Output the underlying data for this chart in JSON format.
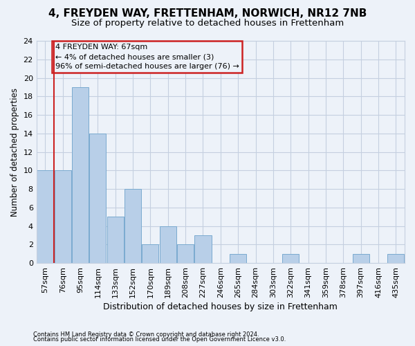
{
  "title1": "4, FREYDEN WAY, FRETTENHAM, NORWICH, NR12 7NB",
  "title2": "Size of property relative to detached houses in Frettenham",
  "xlabel": "Distribution of detached houses by size in Frettenham",
  "ylabel": "Number of detached properties",
  "categories": [
    "57sqm",
    "76sqm",
    "95sqm",
    "114sqm",
    "133sqm",
    "152sqm",
    "170sqm",
    "189sqm",
    "208sqm",
    "227sqm",
    "246sqm",
    "265sqm",
    "284sqm",
    "303sqm",
    "322sqm",
    "341sqm",
    "359sqm",
    "378sqm",
    "397sqm",
    "416sqm",
    "435sqm"
  ],
  "values": [
    10,
    10,
    19,
    14,
    5,
    8,
    2,
    4,
    2,
    3,
    0,
    1,
    0,
    0,
    1,
    0,
    0,
    0,
    1,
    0,
    1
  ],
  "bar_color": "#b8cfe8",
  "bar_edge_color": "#7aaad0",
  "highlight_color": "#cc2222",
  "ylim": [
    0,
    24
  ],
  "yticks": [
    0,
    2,
    4,
    6,
    8,
    10,
    12,
    14,
    16,
    18,
    20,
    22,
    24
  ],
  "annotation_line1": "4 FREYDEN WAY: 67sqm",
  "annotation_line2": "← 4% of detached houses are smaller (3)",
  "annotation_line3": "96% of semi-detached houses are larger (76) →",
  "annotation_box_color": "#cc2222",
  "footnote1": "Contains HM Land Registry data © Crown copyright and database right 2024.",
  "footnote2": "Contains public sector information licensed under the Open Government Licence v3.0.",
  "bg_color": "#edf2f9",
  "grid_color": "#c5cfe0",
  "title1_fontsize": 11,
  "title2_fontsize": 9.5,
  "xlabel_fontsize": 9,
  "ylabel_fontsize": 8.5,
  "tick_fontsize": 8,
  "annot_fontsize": 8
}
